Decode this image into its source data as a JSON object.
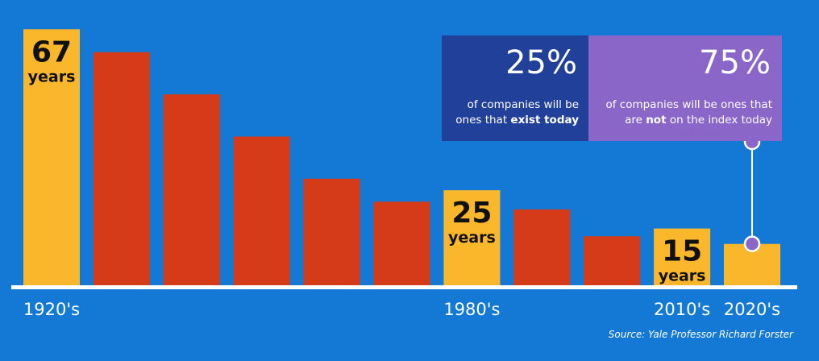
{
  "chart_data": {
    "type": "bar",
    "categories": [
      "1920's",
      "",
      "",
      "",
      "",
      "",
      "1980's",
      "",
      "",
      "2010's",
      "2020's"
    ],
    "values": [
      67,
      61,
      50,
      39,
      28,
      22,
      25,
      20,
      13,
      15,
      11
    ],
    "highlight": [
      true,
      false,
      false,
      false,
      false,
      false,
      true,
      false,
      false,
      true,
      true
    ],
    "bar_labels": [
      {
        "index": 0,
        "value": "67",
        "unit": "years"
      },
      {
        "index": 6,
        "value": "25",
        "unit": "years"
      },
      {
        "index": 9,
        "value": "15",
        "unit": "years"
      }
    ],
    "ylim": [
      0,
      70
    ],
    "grid": false,
    "colors": {
      "highlight": "#fbb72c",
      "normal": "#d53b19",
      "background": "#1479d4",
      "baseline": "#ffffff"
    }
  },
  "callout": {
    "left": {
      "percent": "25%",
      "line1": "of companies will be",
      "line2_prefix": "ones that ",
      "line2_bold": "exist today",
      "color": "#21409a"
    },
    "right": {
      "percent": "75%",
      "line1": "of companies will be ones that",
      "line2_prefix": "are ",
      "line2_bold": "not",
      "line2_suffix": " on the index today",
      "color": "#8a66c8"
    }
  },
  "source": "Source: Yale Professor Richard Forster"
}
